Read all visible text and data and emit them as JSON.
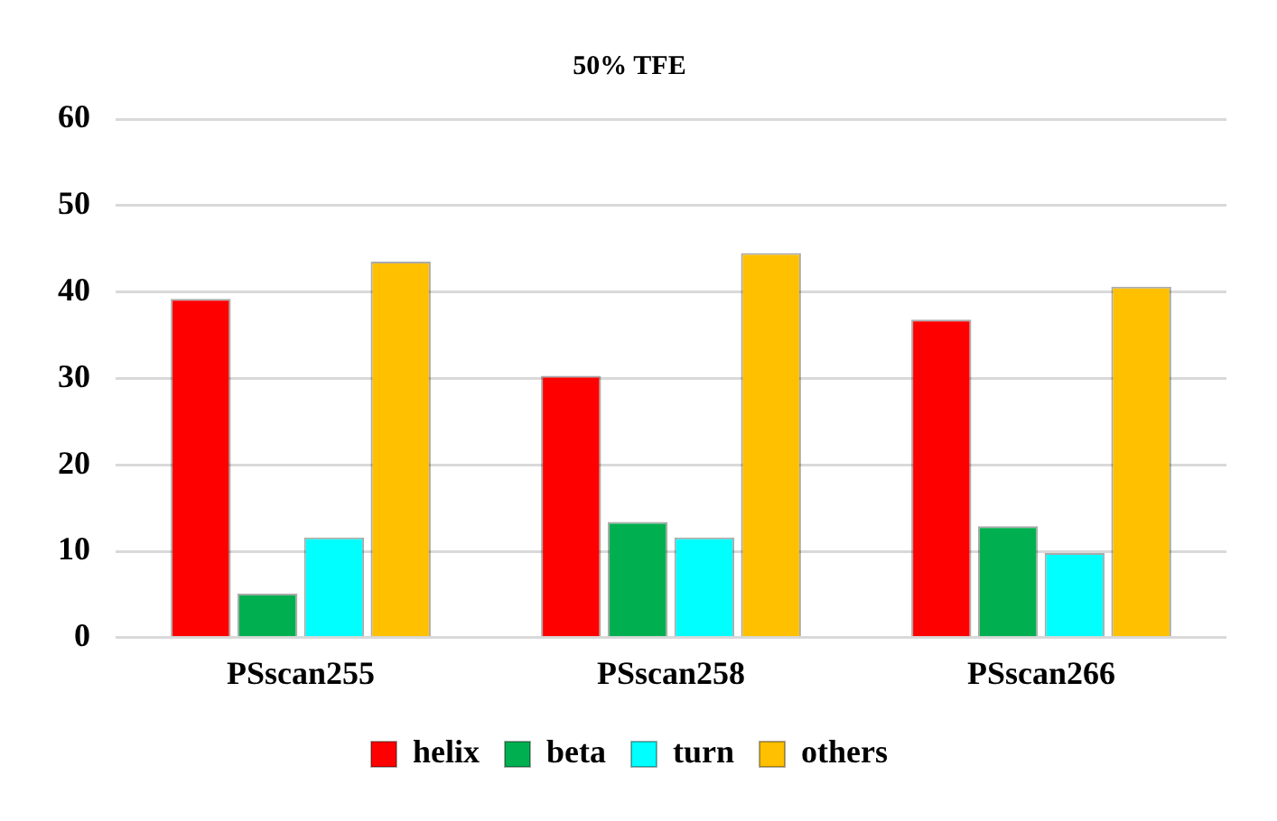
{
  "chart_data": {
    "type": "bar",
    "title": "50% TFE",
    "categories": [
      "PSscan255",
      "PSscan258",
      "PSscan266"
    ],
    "series": [
      {
        "name": "helix",
        "color": "#ff0000",
        "values": [
          39.2,
          30.3,
          36.8
        ]
      },
      {
        "name": "beta",
        "color": "#00b050",
        "values": [
          5.1,
          13.4,
          12.9
        ]
      },
      {
        "name": "turn",
        "color": "#00ffff",
        "values": [
          11.6,
          11.6,
          9.8
        ]
      },
      {
        "name": "others",
        "color": "#ffc000",
        "values": [
          43.5,
          44.5,
          40.6
        ]
      }
    ],
    "ylim": [
      0,
      60
    ],
    "yticks": [
      0,
      10,
      20,
      30,
      40,
      50,
      60
    ],
    "grid": "y",
    "legend": "bottom"
  }
}
